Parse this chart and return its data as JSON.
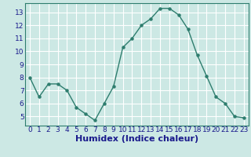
{
  "x": [
    0,
    1,
    2,
    3,
    4,
    5,
    6,
    7,
    8,
    9,
    10,
    11,
    12,
    13,
    14,
    15,
    16,
    17,
    18,
    19,
    20,
    21,
    22,
    23
  ],
  "y": [
    8.0,
    6.5,
    7.5,
    7.5,
    7.0,
    5.7,
    5.2,
    4.7,
    6.0,
    7.3,
    10.3,
    11.0,
    12.0,
    12.5,
    13.3,
    13.3,
    12.8,
    11.7,
    9.7,
    8.1,
    6.5,
    6.0,
    5.0,
    4.9
  ],
  "xlabel": "Humidex (Indice chaleur)",
  "ylim": [
    4.3,
    13.7
  ],
  "xlim": [
    -0.5,
    23.5
  ],
  "yticks": [
    5,
    6,
    7,
    8,
    9,
    10,
    11,
    12,
    13
  ],
  "xticks": [
    0,
    1,
    2,
    3,
    4,
    5,
    6,
    7,
    8,
    9,
    10,
    11,
    12,
    13,
    14,
    15,
    16,
    17,
    18,
    19,
    20,
    21,
    22,
    23
  ],
  "line_color": "#2e7d6e",
  "marker_color": "#2e7d6e",
  "grid_color": "#ffffff",
  "axes_bg": "#cce8e4",
  "fig_bg": "#cce8e4",
  "xlabel_color": "#1a1a8c",
  "tick_color": "#1a1a8c",
  "xlabel_fontsize": 8,
  "tick_fontsize": 6.5,
  "spine_color": "#2e7d6e"
}
